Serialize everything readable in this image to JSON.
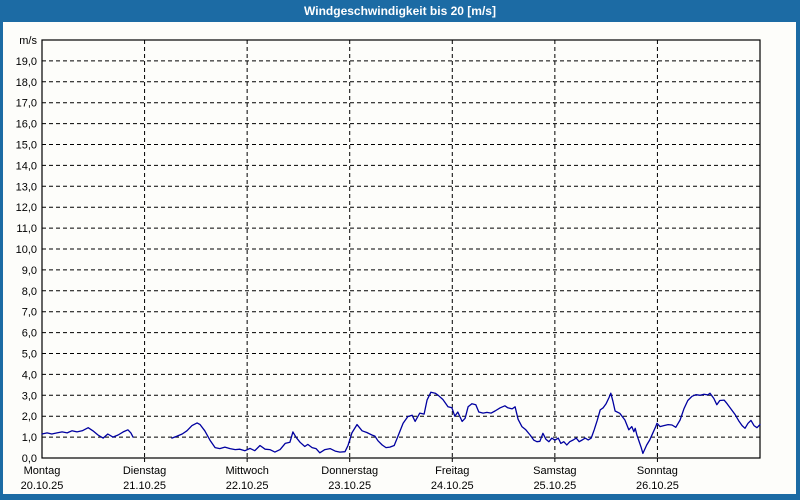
{
  "window": {
    "title": "Windgeschwindigkeit bis 20 [m/s]"
  },
  "colors": {
    "titlebar_bg": "#1c6ba4",
    "frame": "#1c6ba4",
    "content_bg": "#fdfdfa",
    "plot_border": "#000000",
    "gridline": "#000000",
    "line": "#0000a0",
    "title_text": "#ffffff",
    "label_text": "#000000"
  },
  "chart_data": {
    "type": "line",
    "title": "Windgeschwindigkeit bis 20 [m/s]",
    "y_unit": "m/s",
    "ylim": [
      0,
      20
    ],
    "y_tick_step": 1,
    "y_tick_labels": [
      "0,0",
      "1,0",
      "2,0",
      "3,0",
      "4,0",
      "5,0",
      "6,0",
      "7,0",
      "8,0",
      "9,0",
      "10,0",
      "11,0",
      "12,0",
      "13,0",
      "14,0",
      "15,0",
      "16,0",
      "17,0",
      "18,0",
      "19,0"
    ],
    "grid": "dashed",
    "legend": "none",
    "x_total_hours": 168,
    "hours_per_day": 24,
    "x_days": [
      {
        "weekday": "Montag",
        "date": "20.10.25"
      },
      {
        "weekday": "Dienstag",
        "date": "21.10.25"
      },
      {
        "weekday": "Mittwoch",
        "date": "22.10.25"
      },
      {
        "weekday": "Donnerstag",
        "date": "23.10.25"
      },
      {
        "weekday": "Freitag",
        "date": "24.10.25"
      },
      {
        "weekday": "Samstag",
        "date": "25.10.25"
      },
      {
        "weekday": "Sonntag",
        "date": "26.10.25"
      }
    ],
    "series": [
      {
        "name": "Windgeschwindigkeit",
        "unit": "m/s",
        "note": "data gap Monday ~21:20 to Tuesday ~06:25",
        "segments": [
          [
            [
              0,
              1.15
            ],
            [
              1.2,
              1.2
            ],
            [
              2.3,
              1.15
            ],
            [
              3.5,
              1.2
            ],
            [
              4.7,
              1.25
            ],
            [
              5.9,
              1.2
            ],
            [
              7.0,
              1.3
            ],
            [
              8.2,
              1.25
            ],
            [
              9.4,
              1.3
            ],
            [
              10.8,
              1.45
            ],
            [
              11.9,
              1.3
            ],
            [
              13.1,
              1.1
            ],
            [
              14.3,
              0.95
            ],
            [
              15.4,
              1.15
            ],
            [
              16.6,
              1.0
            ],
            [
              17.8,
              1.1
            ],
            [
              19.0,
              1.25
            ],
            [
              20.1,
              1.35
            ],
            [
              20.8,
              1.2
            ],
            [
              21.3,
              1.0
            ]
          ],
          [
            [
              30.4,
              0.95
            ],
            [
              31.6,
              1.05
            ],
            [
              32.8,
              1.15
            ],
            [
              33.9,
              1.3
            ],
            [
              35.1,
              1.55
            ],
            [
              36.3,
              1.68
            ],
            [
              37.0,
              1.6
            ],
            [
              38.1,
              1.3
            ],
            [
              39.3,
              0.85
            ],
            [
              40.5,
              0.5
            ],
            [
              41.6,
              0.45
            ],
            [
              42.8,
              0.52
            ],
            [
              44.0,
              0.45
            ],
            [
              45.2,
              0.4
            ],
            [
              46.3,
              0.42
            ],
            [
              47.5,
              0.35
            ],
            [
              48.7,
              0.46
            ],
            [
              49.8,
              0.35
            ],
            [
              51.0,
              0.6
            ],
            [
              52.2,
              0.42
            ],
            [
              53.3,
              0.4
            ],
            [
              54.5,
              0.28
            ],
            [
              55.7,
              0.4
            ],
            [
              56.9,
              0.7
            ],
            [
              58.0,
              0.75
            ],
            [
              58.7,
              1.25
            ],
            [
              59.4,
              1.0
            ],
            [
              60.4,
              0.75
            ],
            [
              61.5,
              0.55
            ],
            [
              62.2,
              0.65
            ],
            [
              63.2,
              0.5
            ],
            [
              64.1,
              0.45
            ],
            [
              65.0,
              0.25
            ],
            [
              66.2,
              0.4
            ],
            [
              67.4,
              0.45
            ],
            [
              68.6,
              0.33
            ],
            [
              69.7,
              0.28
            ],
            [
              70.9,
              0.3
            ],
            [
              71.6,
              0.6
            ],
            [
              72.5,
              1.2
            ],
            [
              73.7,
              1.6
            ],
            [
              74.9,
              1.3
            ],
            [
              76.0,
              1.22
            ],
            [
              77.2,
              1.1
            ],
            [
              77.9,
              1.05
            ],
            [
              78.6,
              0.83
            ],
            [
              79.6,
              0.62
            ],
            [
              80.5,
              0.5
            ],
            [
              81.4,
              0.52
            ],
            [
              82.4,
              0.6
            ],
            [
              83.3,
              1.05
            ],
            [
              84.5,
              1.66
            ],
            [
              85.6,
              1.98
            ],
            [
              86.6,
              2.05
            ],
            [
              87.3,
              1.75
            ],
            [
              88.4,
              2.15
            ],
            [
              89.4,
              2.1
            ],
            [
              90.1,
              2.78
            ],
            [
              91.0,
              3.15
            ],
            [
              92.0,
              3.1
            ],
            [
              92.7,
              3.0
            ],
            [
              93.8,
              2.8
            ],
            [
              95.0,
              2.45
            ],
            [
              95.9,
              2.4
            ],
            [
              96.6,
              2.0
            ],
            [
              97.3,
              2.2
            ],
            [
              98.3,
              1.75
            ],
            [
              99.0,
              1.9
            ],
            [
              99.7,
              2.45
            ],
            [
              100.6,
              2.6
            ],
            [
              101.5,
              2.55
            ],
            [
              102.2,
              2.2
            ],
            [
              103.2,
              2.15
            ],
            [
              104.1,
              2.18
            ],
            [
              105.1,
              2.15
            ],
            [
              106.0,
              2.25
            ],
            [
              107.2,
              2.4
            ],
            [
              108.3,
              2.5
            ],
            [
              109.0,
              2.4
            ],
            [
              110.0,
              2.35
            ],
            [
              110.7,
              2.45
            ],
            [
              111.4,
              1.85
            ],
            [
              112.3,
              1.5
            ],
            [
              113.2,
              1.35
            ],
            [
              114.2,
              1.1
            ],
            [
              115.1,
              0.85
            ],
            [
              115.8,
              0.78
            ],
            [
              116.5,
              0.8
            ],
            [
              117.2,
              1.18
            ],
            [
              117.9,
              0.9
            ],
            [
              118.6,
              0.78
            ],
            [
              119.3,
              0.95
            ],
            [
              120.0,
              0.85
            ],
            [
              120.8,
              0.95
            ],
            [
              121.4,
              0.7
            ],
            [
              122.1,
              0.78
            ],
            [
              122.8,
              0.62
            ],
            [
              123.5,
              0.78
            ],
            [
              124.3,
              0.86
            ],
            [
              125.0,
              0.95
            ],
            [
              125.7,
              0.78
            ],
            [
              126.4,
              0.86
            ],
            [
              127.1,
              0.95
            ],
            [
              127.8,
              0.86
            ],
            [
              128.5,
              0.95
            ],
            [
              129.2,
              1.35
            ],
            [
              129.9,
              1.8
            ],
            [
              130.6,
              2.3
            ],
            [
              131.3,
              2.4
            ],
            [
              132.0,
              2.6
            ],
            [
              132.7,
              2.9
            ],
            [
              133.1,
              3.1
            ],
            [
              133.6,
              2.7
            ],
            [
              134.1,
              2.25
            ],
            [
              135.2,
              2.14
            ],
            [
              136.4,
              1.82
            ],
            [
              137.3,
              1.35
            ],
            [
              138.0,
              1.5
            ],
            [
              138.5,
              1.26
            ],
            [
              138.8,
              1.42
            ],
            [
              139.2,
              1.1
            ],
            [
              140.2,
              0.5
            ],
            [
              140.6,
              0.22
            ],
            [
              141.5,
              0.62
            ],
            [
              142.2,
              0.86
            ],
            [
              142.9,
              1.18
            ],
            [
              143.6,
              1.5
            ],
            [
              143.9,
              1.66
            ],
            [
              144.6,
              1.5
            ],
            [
              145.5,
              1.55
            ],
            [
              146.5,
              1.6
            ],
            [
              147.4,
              1.58
            ],
            [
              148.3,
              1.47
            ],
            [
              149.3,
              1.82
            ],
            [
              150.2,
              2.35
            ],
            [
              151.1,
              2.75
            ],
            [
              152.1,
              2.95
            ],
            [
              153.0,
              3.03
            ],
            [
              154.0,
              3.0
            ],
            [
              154.9,
              3.05
            ],
            [
              155.8,
              3.02
            ],
            [
              156.3,
              3.1
            ],
            [
              157.2,
              2.85
            ],
            [
              157.9,
              2.55
            ],
            [
              158.6,
              2.75
            ],
            [
              159.6,
              2.77
            ],
            [
              160.3,
              2.6
            ],
            [
              161.2,
              2.35
            ],
            [
              162.1,
              2.1
            ],
            [
              163.1,
              1.75
            ],
            [
              163.8,
              1.55
            ],
            [
              164.5,
              1.42
            ],
            [
              165.2,
              1.66
            ],
            [
              165.9,
              1.8
            ],
            [
              166.6,
              1.55
            ],
            [
              167.3,
              1.45
            ],
            [
              168.0,
              1.6
            ]
          ]
        ]
      }
    ]
  }
}
